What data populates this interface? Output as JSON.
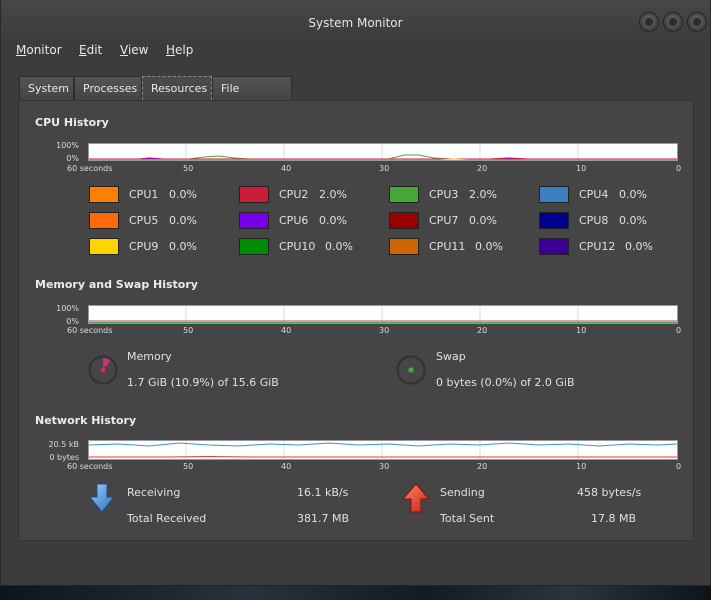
{
  "window": {
    "title": "System Monitor"
  },
  "menu": [
    "Monitor",
    "Edit",
    "View",
    "Help"
  ],
  "tabs": [
    "System",
    "Processes",
    "Resources",
    "File Systems"
  ],
  "active_tab": "Resources",
  "cpu": {
    "title": "CPU History",
    "y_top": "100%",
    "y_bottom": "0%",
    "x_labels": [
      "60 seconds",
      "50",
      "40",
      "30",
      "20",
      "10",
      "0"
    ],
    "cpus": [
      {
        "name": "CPU1",
        "value": "0.0%",
        "color": "#ff7f00"
      },
      {
        "name": "CPU2",
        "value": "2.0%",
        "color": "#cd1c3a"
      },
      {
        "name": "CPU3",
        "value": "2.0%",
        "color": "#49a835"
      },
      {
        "name": "CPU4",
        "value": "0.0%",
        "color": "#3a7fbe"
      },
      {
        "name": "CPU5",
        "value": "0.0%",
        "color": "#ff6a0e"
      },
      {
        "name": "CPU6",
        "value": "0.0%",
        "color": "#7500e8"
      },
      {
        "name": "CPU7",
        "value": "0.0%",
        "color": "#9b0000"
      },
      {
        "name": "CPU8",
        "value": "0.0%",
        "color": "#00008e"
      },
      {
        "name": "CPU9",
        "value": "0.0%",
        "color": "#ffd500"
      },
      {
        "name": "CPU10",
        "value": "0.0%",
        "color": "#008c00"
      },
      {
        "name": "CPU11",
        "value": "0.0%",
        "color": "#cc6600"
      },
      {
        "name": "CPU12",
        "value": "0.0%",
        "color": "#3b0093"
      }
    ]
  },
  "memory": {
    "title": "Memory and Swap History",
    "y_top": "100%",
    "y_bottom": "0%",
    "x_labels": [
      "60 seconds",
      "50",
      "40",
      "30",
      "20",
      "10",
      "0"
    ],
    "memory_label": "Memory",
    "memory_value": "1.7 GiB (10.9%) of 15.6 GiB",
    "memory_fraction": 0.109,
    "memory_color": "#c3347a",
    "swap_label": "Swap",
    "swap_value": "0 bytes (0.0%) of 2.0 GiB",
    "swap_fraction": 0.0,
    "swap_color": "#4ea84a"
  },
  "network": {
    "title": "Network History",
    "y_top": "20.5 kB",
    "y_bottom": "0 bytes",
    "x_labels": [
      "60 seconds",
      "50",
      "40",
      "30",
      "20",
      "10",
      "0"
    ],
    "receiving_label": "Receiving",
    "receiving_value": "16.1 kB/s",
    "total_received_label": "Total Received",
    "total_received_value": "381.7 MB",
    "sending_label": "Sending",
    "sending_value": "458 bytes/s",
    "total_sent_label": "Total Sent",
    "total_sent_value": "17.8 MB",
    "receiving_color": "#3f8fd4",
    "sending_color": "#e43a24"
  }
}
